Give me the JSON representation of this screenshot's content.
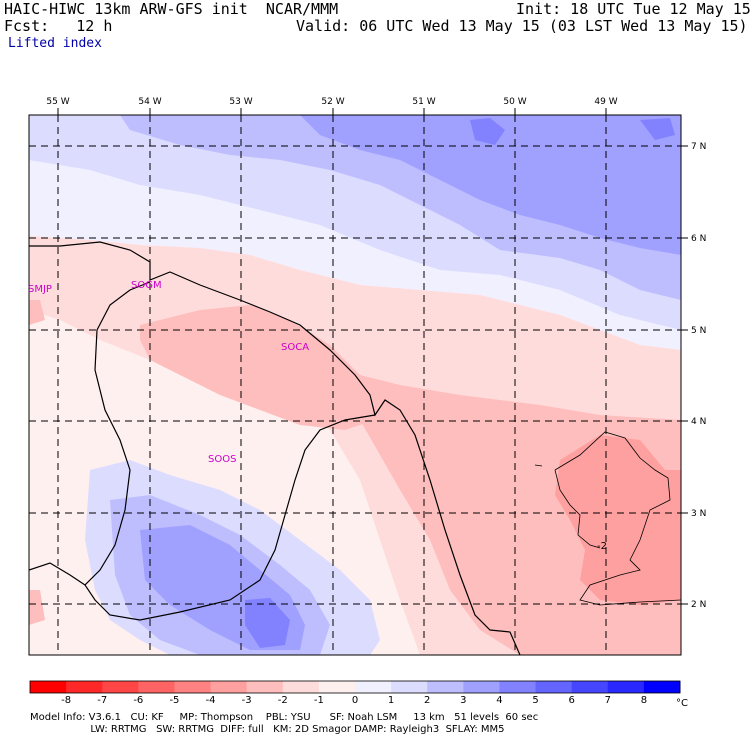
{
  "header": {
    "model_line": "HAIC-HIWC 13km ARW-GFS init  NCAR/MMM",
    "fcst_line": "Fcst:   12 h",
    "init_line": "Init: 18 UTC Tue 12 May 15",
    "valid_line": "Valid: 06 UTC Wed 13 May 15 (03 LST Wed 13 May 15)",
    "field_name": "Lifted index"
  },
  "map": {
    "lon_labels": [
      "55 W",
      "54 W",
      "53 W",
      "52 W",
      "51 W",
      "50 W",
      "49 W"
    ],
    "lat_labels": [
      "7 N",
      "6 N",
      "5 N",
      "4 N",
      "3 N",
      "2 N"
    ],
    "stations": [
      {
        "id": "SMJP"
      },
      {
        "id": "SOGM"
      },
      {
        "id": "SOCA"
      },
      {
        "id": "SOOS"
      }
    ],
    "contour_labels": [
      "-2"
    ]
  },
  "colorbar": {
    "unit": "°C",
    "ticks": [
      "-8",
      "-7",
      "-6",
      "-5",
      "-4",
      "-3",
      "-2",
      "-1",
      "0",
      "1",
      "2",
      "3",
      "4",
      "5",
      "6",
      "7",
      "8"
    ],
    "colors": [
      "#ff0000",
      "#ff2828",
      "#ff4646",
      "#ff6464",
      "#ff8282",
      "#ffa0a0",
      "#ffbebe",
      "#ffdcdc",
      "#fff0f0",
      "#f0f0ff",
      "#dcdcff",
      "#bebeff",
      "#a0a0ff",
      "#8282ff",
      "#6464ff",
      "#4646ff",
      "#2828ff",
      "#0000ff"
    ]
  },
  "footer": {
    "line1": "Model Info: V3.6.1   CU: KF     MP: Thompson    PBL: YSU      SF: Noah LSM     13 km   51 levels  60 sec",
    "line2": "                   LW: RRTMG   SW: RRTMG  DIFF: full   KM: 2D Smagor DAMP: Rayleigh3  SFLAY: MM5"
  }
}
